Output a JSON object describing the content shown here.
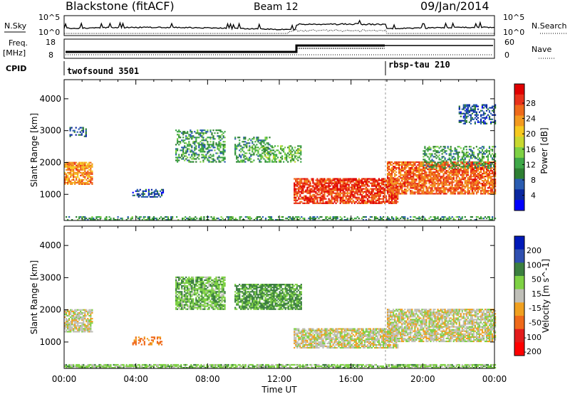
{
  "header": {
    "station": "Blackstone (fitACF)",
    "beam": "Beam 12",
    "date": "09/Jan/2014"
  },
  "strip": {
    "nsky_label": "N.Sky",
    "nsearch_label": "N.Search",
    "nsky_ticks": [
      "10^5",
      "10^0"
    ],
    "nsearch_ticks": [
      "10^5",
      "10^0"
    ],
    "freq_label": "Freq.",
    "freq_unit": "[MHz]",
    "freq_ticks": [
      "18",
      "8"
    ],
    "nave_label": "Nave",
    "nave_ticks": [
      "60",
      "0"
    ],
    "cpid_label": "CPID",
    "cpid_modes": [
      {
        "name": "twofsound 3501",
        "start_hour": 0
      },
      {
        "name": "rbsp-tau 210",
        "start_hour": 18
      }
    ]
  },
  "axes": {
    "xlabel": "Time UT",
    "xticks": [
      "00:00",
      "04:00",
      "08:00",
      "12:00",
      "16:00",
      "20:00",
      "00:00"
    ],
    "xrange_hours": [
      0,
      24
    ],
    "ylabel": "Slant Range [km]",
    "yticks": [
      "1000",
      "2000",
      "3000",
      "4000"
    ],
    "yrange_km": [
      180,
      4600
    ]
  },
  "power_colorbar": {
    "label": "Power [dB]",
    "ticks": [
      "28",
      "24",
      "20",
      "16",
      "12",
      "8",
      "4"
    ],
    "colors": [
      "#0000ff",
      "#0a27a0",
      "#2a5cb0",
      "#2e7f33",
      "#3fa848",
      "#7ed144",
      "#c8d830",
      "#f6c91f",
      "#f39a1f",
      "#ef6a1a",
      "#e8311a",
      "#e00000"
    ]
  },
  "velocity_colorbar": {
    "label": "Velocity [m s^-1]",
    "ticks": [
      "200",
      "100",
      "50",
      "15",
      "-15",
      "-50",
      "-100",
      "-200"
    ],
    "colors": [
      "#0019b8",
      "#2f4fb0",
      "#3b7f3f",
      "#7ed144",
      "#bfbfb8",
      "#f0a020",
      "#ef6a1a",
      "#e31b1b",
      "#ff0000"
    ]
  },
  "chart_data": [
    {
      "type": "heatmap",
      "title": "Power",
      "xlabel": "Time UT",
      "ylabel": "Slant Range [km]",
      "xlim": [
        0,
        24
      ],
      "ylim": [
        180,
        4600
      ],
      "value_label": "Power [dB]",
      "value_range": [
        0,
        30
      ],
      "regions": [
        {
          "t": [
            0.0,
            1.6
          ],
          "r": [
            1300,
            2000
          ],
          "value": 22
        },
        {
          "t": [
            0.3,
            1.2
          ],
          "r": [
            2800,
            3100
          ],
          "value": 6
        },
        {
          "t": [
            3.8,
            5.5
          ],
          "r": [
            900,
            1150
          ],
          "value": 6
        },
        {
          "t": [
            6.2,
            9.0
          ],
          "r": [
            2000,
            3000
          ],
          "value": 10
        },
        {
          "t": [
            9.5,
            11.5
          ],
          "r": [
            2000,
            2800
          ],
          "value": 10
        },
        {
          "t": [
            11.0,
            13.2
          ],
          "r": [
            2000,
            2500
          ],
          "value": 12
        },
        {
          "t": [
            12.8,
            18.6
          ],
          "r": [
            700,
            1500
          ],
          "value": 26
        },
        {
          "t": [
            18.0,
            24.0
          ],
          "r": [
            1000,
            2000
          ],
          "value": 24
        },
        {
          "t": [
            20.0,
            24.0
          ],
          "r": [
            1800,
            2500
          ],
          "value": 10
        },
        {
          "t": [
            22.0,
            24.0
          ],
          "r": [
            3200,
            3800
          ],
          "value": 6
        },
        {
          "t": [
            0.0,
            24.0
          ],
          "r": [
            180,
            300
          ],
          "value": 10
        }
      ]
    },
    {
      "type": "heatmap",
      "title": "Velocity",
      "xlabel": "Time UT",
      "ylabel": "Slant Range [km]",
      "xlim": [
        0,
        24
      ],
      "ylim": [
        180,
        4600
      ],
      "value_label": "Velocity [m s^-1]",
      "value_range": [
        -200,
        200
      ],
      "regions": [
        {
          "t": [
            0.0,
            1.6
          ],
          "r": [
            1300,
            2000
          ],
          "value": 0
        },
        {
          "t": [
            3.8,
            5.5
          ],
          "r": [
            900,
            1150
          ],
          "value": -60
        },
        {
          "t": [
            6.2,
            9.0
          ],
          "r": [
            2000,
            3000
          ],
          "value": 40
        },
        {
          "t": [
            9.5,
            13.2
          ],
          "r": [
            2000,
            2800
          ],
          "value": 60
        },
        {
          "t": [
            12.8,
            18.6
          ],
          "r": [
            800,
            1400
          ],
          "value": 0
        },
        {
          "t": [
            18.0,
            24.0
          ],
          "r": [
            1000,
            2000
          ],
          "value": 0
        },
        {
          "t": [
            0.0,
            24.0
          ],
          "r": [
            180,
            300
          ],
          "value": 30
        }
      ]
    }
  ]
}
